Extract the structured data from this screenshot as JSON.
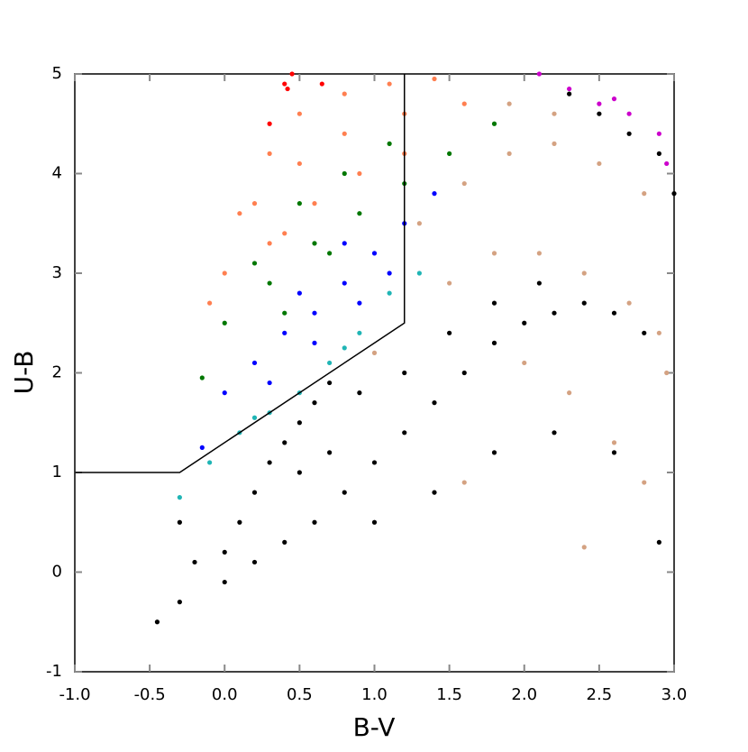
{
  "chart_data": {
    "type": "scatter",
    "xlabel": "B-V",
    "ylabel": "U-B",
    "xlim": [
      -1,
      3
    ],
    "ylim": [
      -1,
      5
    ],
    "xticks": [
      {
        "value": -1,
        "label": "-1.0"
      },
      {
        "value": -0.5,
        "label": "-0.5"
      },
      {
        "value": 0,
        "label": "0.0"
      },
      {
        "value": 0.5,
        "label": "0.5"
      },
      {
        "value": 1,
        "label": "1.0"
      },
      {
        "value": 1.5,
        "label": "1.5"
      },
      {
        "value": 2,
        "label": "2.0"
      },
      {
        "value": 2.5,
        "label": "2.5"
      },
      {
        "value": 3,
        "label": "3.0"
      }
    ],
    "yticks": [
      -1,
      0,
      1,
      2,
      3,
      4,
      5
    ],
    "series": [
      {
        "color": "#000000",
        "x": [
          -0.45,
          -0.3,
          -0.2,
          0.0,
          0.1,
          0.2,
          0.3,
          0.4,
          0.5,
          0.6,
          0.7,
          0.0,
          0.2,
          0.4,
          0.6,
          0.8,
          1.0,
          1.2,
          1.4,
          1.6,
          1.8,
          2.0,
          2.2,
          2.4,
          2.6,
          2.8,
          1.0,
          1.4,
          1.8,
          2.2,
          2.6,
          2.9,
          0.9,
          1.2,
          1.5,
          1.8,
          2.1,
          -0.3,
          0.5,
          0.7,
          2.3,
          2.5,
          2.7,
          2.9,
          3.0
        ],
        "values": [
          -0.5,
          -0.3,
          0.1,
          0.2,
          0.5,
          0.8,
          1.1,
          1.3,
          1.5,
          1.7,
          1.9,
          -0.1,
          0.1,
          0.3,
          0.5,
          0.8,
          1.1,
          1.4,
          1.7,
          2.0,
          2.3,
          2.5,
          2.6,
          2.7,
          2.6,
          2.4,
          0.5,
          0.8,
          1.2,
          1.4,
          1.2,
          0.3,
          1.8,
          2.0,
          2.4,
          2.7,
          2.9,
          0.5,
          1.0,
          1.2,
          4.8,
          4.6,
          4.4,
          4.2,
          3.8
        ]
      },
      {
        "color": "#d4a282",
        "x": [
          1.3,
          1.6,
          1.9,
          2.2,
          2.5,
          2.8,
          1.5,
          1.8,
          2.1,
          2.4,
          2.7,
          2.9,
          2.0,
          2.3,
          2.6,
          2.8,
          2.4,
          1.6,
          2.95,
          1.0,
          1.9,
          2.2
        ],
        "values": [
          3.5,
          3.9,
          4.2,
          4.3,
          4.1,
          3.8,
          2.9,
          3.2,
          3.2,
          3.0,
          2.7,
          2.4,
          2.1,
          1.8,
          1.3,
          0.9,
          0.25,
          0.9,
          2.0,
          2.2,
          4.7,
          4.6
        ]
      },
      {
        "color": "#ff7f50",
        "x": [
          0.1,
          0.3,
          0.5,
          0.8,
          1.1,
          1.4,
          0.0,
          0.2,
          0.5,
          0.8,
          1.2,
          1.6,
          0.3,
          0.6,
          0.9,
          1.2,
          -0.1,
          0.4
        ],
        "values": [
          3.6,
          4.2,
          4.6,
          4.8,
          4.9,
          4.95,
          3.0,
          3.7,
          4.1,
          4.4,
          4.6,
          4.7,
          3.3,
          3.7,
          4.0,
          4.2,
          2.7,
          3.4
        ]
      },
      {
        "color": "#007700",
        "x": [
          -0.15,
          0.0,
          0.3,
          0.6,
          0.9,
          1.2,
          1.5,
          1.8,
          0.2,
          0.5,
          0.8,
          1.1,
          0.4,
          0.7
        ],
        "values": [
          1.95,
          2.5,
          2.9,
          3.3,
          3.6,
          3.9,
          4.2,
          4.5,
          3.1,
          3.7,
          4.0,
          4.3,
          2.6,
          3.2
        ]
      },
      {
        "color": "#0000ff",
        "x": [
          -0.15,
          0.0,
          0.2,
          0.4,
          0.6,
          0.8,
          1.0,
          1.2,
          1.4,
          0.3,
          0.6,
          0.9,
          1.1,
          0.5,
          0.8
        ],
        "values": [
          1.25,
          1.8,
          2.1,
          2.4,
          2.6,
          2.9,
          3.2,
          3.5,
          3.8,
          1.9,
          2.3,
          2.7,
          3.0,
          2.8,
          3.3
        ]
      },
      {
        "color": "#20b5b5",
        "x": [
          -0.3,
          -0.1,
          0.1,
          0.3,
          0.5,
          0.7,
          0.9,
          1.1,
          1.3,
          0.2,
          0.8
        ],
        "values": [
          0.75,
          1.1,
          1.4,
          1.6,
          1.8,
          2.1,
          2.4,
          2.8,
          3.0,
          1.55,
          2.25
        ]
      },
      {
        "color": "#ff0000",
        "x": [
          0.4,
          0.45,
          0.3,
          0.65,
          0.42
        ],
        "values": [
          4.9,
          5.0,
          4.5,
          4.9,
          4.85
        ]
      },
      {
        "color": "#cc00cc",
        "x": [
          2.1,
          2.3,
          2.5,
          2.7,
          2.9,
          2.95,
          2.6
        ],
        "values": [
          5.0,
          4.85,
          4.7,
          4.6,
          4.4,
          4.1,
          4.75
        ]
      }
    ],
    "boundary": {
      "color": "#000000",
      "x": [
        -1,
        -0.3,
        1.2,
        1.2
      ],
      "values": [
        1,
        1,
        2.5,
        5
      ]
    }
  }
}
